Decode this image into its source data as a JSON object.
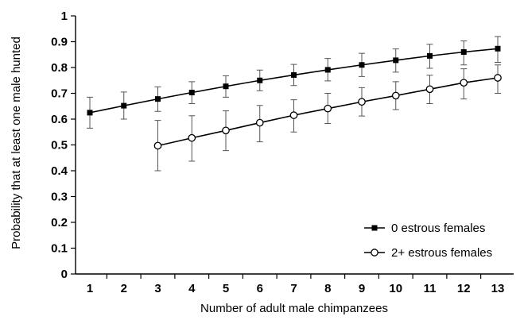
{
  "chart_data": {
    "type": "line",
    "title": "",
    "xlabel": "Number of adult male chimpanzees",
    "ylabel": "Probability that at least one male hunted",
    "ylim": [
      0,
      1
    ],
    "xlim": [
      1,
      13
    ],
    "grid": false,
    "legend_position": "bottom-right",
    "y_ticks": [
      "0",
      "0.1",
      "0.2",
      "0.3",
      "0.4",
      "0.5",
      "0.6",
      "0.7",
      "0.8",
      "0.9",
      "1"
    ],
    "x_ticks": [
      "1",
      "2",
      "3",
      "4",
      "5",
      "6",
      "7",
      "8",
      "9",
      "10",
      "11",
      "12",
      "13"
    ],
    "series": [
      {
        "name": "0 estrous females",
        "marker": "filled-square",
        "color": "#000000",
        "x": [
          1,
          2,
          3,
          4,
          5,
          6,
          7,
          8,
          9,
          10,
          11,
          12,
          13
        ],
        "y": [
          0.625,
          0.652,
          0.678,
          0.703,
          0.727,
          0.75,
          0.771,
          0.791,
          0.81,
          0.828,
          0.845,
          0.86,
          0.873
        ],
        "err_low": [
          0.565,
          0.6,
          0.63,
          0.66,
          0.685,
          0.71,
          0.73,
          0.748,
          0.765,
          0.782,
          0.797,
          0.81,
          0.82
        ],
        "err_high": [
          0.685,
          0.705,
          0.725,
          0.745,
          0.768,
          0.79,
          0.812,
          0.835,
          0.855,
          0.872,
          0.89,
          0.903,
          0.92
        ]
      },
      {
        "name": "2+ estrous females",
        "marker": "open-circle",
        "color": "#000000",
        "x": [
          3,
          4,
          5,
          6,
          7,
          8,
          9,
          10,
          11,
          12,
          13
        ],
        "y": [
          0.497,
          0.527,
          0.556,
          0.586,
          0.615,
          0.641,
          0.667,
          0.691,
          0.716,
          0.741,
          0.76
        ],
        "err_low": [
          0.4,
          0.437,
          0.478,
          0.512,
          0.55,
          0.583,
          0.612,
          0.637,
          0.66,
          0.678,
          0.7
        ],
        "err_high": [
          0.595,
          0.613,
          0.632,
          0.653,
          0.675,
          0.7,
          0.722,
          0.745,
          0.77,
          0.795,
          0.81
        ]
      }
    ]
  }
}
